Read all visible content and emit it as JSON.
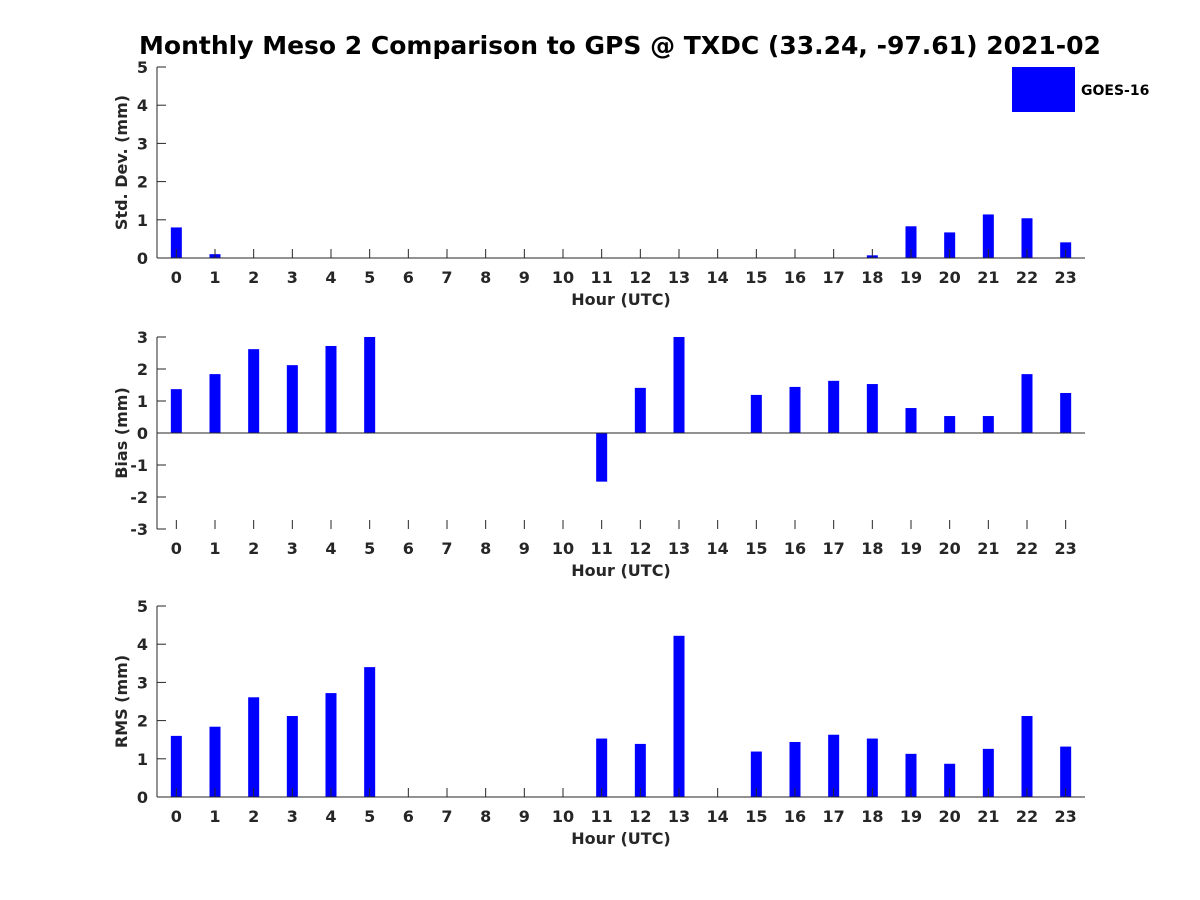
{
  "title": "Monthly Meso 2 Comparison to GPS @ TXDC (33.24, -97.61) 2021-02",
  "legend": {
    "label": "GOES-16",
    "color": "#0000ff",
    "placement": "top-right"
  },
  "chart_data": [
    {
      "type": "bar",
      "ylabel": "Std. Dev. (mm)",
      "xlabel": "Hour (UTC)",
      "ylim": [
        0,
        5
      ],
      "yticks": [
        0,
        1,
        2,
        3,
        4,
        5
      ],
      "xlim": [
        -0.5,
        23.5
      ],
      "categories": [
        "0",
        "1",
        "2",
        "3",
        "4",
        "5",
        "6",
        "7",
        "8",
        "9",
        "10",
        "11",
        "12",
        "13",
        "14",
        "15",
        "16",
        "17",
        "18",
        "19",
        "20",
        "21",
        "22",
        "23"
      ],
      "series": [
        {
          "name": "GOES-16",
          "color": "#0000ff",
          "values": [
            0.8,
            0.1,
            null,
            null,
            null,
            null,
            null,
            null,
            null,
            null,
            null,
            null,
            null,
            null,
            null,
            null,
            null,
            null,
            0.07,
            0.83,
            0.67,
            1.14,
            1.04,
            0.41
          ]
        }
      ]
    },
    {
      "type": "bar",
      "ylabel": "Bias (mm)",
      "xlabel": "Hour (UTC)",
      "ylim": [
        -3,
        3
      ],
      "yticks": [
        -3,
        -2,
        -1,
        0,
        1,
        2,
        3
      ],
      "xlim": [
        -0.5,
        23.5
      ],
      "categories": [
        "0",
        "1",
        "2",
        "3",
        "4",
        "5",
        "6",
        "7",
        "8",
        "9",
        "10",
        "11",
        "12",
        "13",
        "14",
        "15",
        "16",
        "17",
        "18",
        "19",
        "20",
        "21",
        "22",
        "23"
      ],
      "series": [
        {
          "name": "GOES-16",
          "color": "#0000ff",
          "values": [
            1.37,
            1.84,
            2.62,
            2.12,
            2.72,
            3.0,
            null,
            null,
            null,
            null,
            null,
            -1.52,
            1.41,
            3.0,
            null,
            1.19,
            1.44,
            1.63,
            1.53,
            0.78,
            0.53,
            0.53,
            1.84,
            1.25
          ]
        }
      ]
    },
    {
      "type": "bar",
      "ylabel": "RMS (mm)",
      "xlabel": "Hour (UTC)",
      "ylim": [
        0,
        5
      ],
      "yticks": [
        0,
        1,
        2,
        3,
        4,
        5
      ],
      "xlim": [
        -0.5,
        23.5
      ],
      "categories": [
        "0",
        "1",
        "2",
        "3",
        "4",
        "5",
        "6",
        "7",
        "8",
        "9",
        "10",
        "11",
        "12",
        "13",
        "14",
        "15",
        "16",
        "17",
        "18",
        "19",
        "20",
        "21",
        "22",
        "23"
      ],
      "series": [
        {
          "name": "GOES-16",
          "color": "#0000ff",
          "values": [
            1.6,
            1.84,
            2.61,
            2.12,
            2.72,
            3.4,
            null,
            null,
            null,
            null,
            null,
            1.53,
            1.39,
            4.22,
            null,
            1.19,
            1.44,
            1.63,
            1.53,
            1.13,
            0.87,
            1.26,
            2.12,
            1.32
          ]
        }
      ]
    }
  ]
}
